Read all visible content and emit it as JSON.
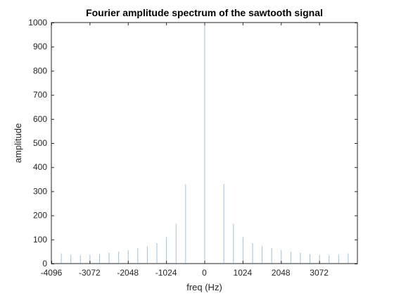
{
  "chart_data": {
    "type": "bar",
    "title": "Fourier amplitude spectrum of the sawtooth signal",
    "xlabel": "freq (Hz)",
    "ylabel": "amplitude",
    "xlim": [
      -4096,
      4096
    ],
    "ylim": [
      0,
      1000
    ],
    "xticks": [
      -4096,
      -3072,
      -2048,
      -1024,
      0,
      1024,
      2048,
      3072
    ],
    "yticks": [
      0,
      100,
      200,
      300,
      400,
      500,
      600,
      700,
      800,
      900,
      1000
    ],
    "grid": false,
    "series": [
      {
        "color": "#4a90c8",
        "points": [
          {
            "x": -3840,
            "y": 42
          },
          {
            "x": -3584,
            "y": 36
          },
          {
            "x": -3328,
            "y": 34
          },
          {
            "x": -3072,
            "y": 36
          },
          {
            "x": -2816,
            "y": 39
          },
          {
            "x": -2560,
            "y": 44
          },
          {
            "x": -2304,
            "y": 50
          },
          {
            "x": -2048,
            "y": 56
          },
          {
            "x": -1792,
            "y": 64
          },
          {
            "x": -1536,
            "y": 72
          },
          {
            "x": -1280,
            "y": 85
          },
          {
            "x": -1024,
            "y": 110
          },
          {
            "x": -768,
            "y": 165
          },
          {
            "x": -512,
            "y": 330
          },
          {
            "x": 0,
            "y": 1000
          },
          {
            "x": 512,
            "y": 330
          },
          {
            "x": 768,
            "y": 165
          },
          {
            "x": 1024,
            "y": 110
          },
          {
            "x": 1280,
            "y": 85
          },
          {
            "x": 1536,
            "y": 72
          },
          {
            "x": 1792,
            "y": 64
          },
          {
            "x": 2048,
            "y": 56
          },
          {
            "x": 2304,
            "y": 50
          },
          {
            "x": 2560,
            "y": 44
          },
          {
            "x": 2816,
            "y": 39
          },
          {
            "x": 3072,
            "y": 36
          },
          {
            "x": 3328,
            "y": 34
          },
          {
            "x": 3584,
            "y": 36
          },
          {
            "x": 3840,
            "y": 42
          }
        ]
      }
    ]
  }
}
